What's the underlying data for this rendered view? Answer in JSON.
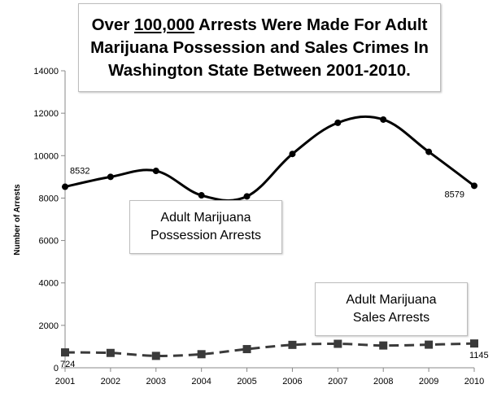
{
  "title": {
    "before": "Over ",
    "underlined": "100,000",
    "after": " Arrests Were Made For Adult Marijuana Possession and Sales Crimes In Washington State Between 2001-2010."
  },
  "chart_data": {
    "type": "line",
    "x": [
      "2001",
      "2002",
      "2003",
      "2004",
      "2005",
      "2006",
      "2007",
      "2008",
      "2009",
      "2010"
    ],
    "ylabel": "Number of Arrests",
    "xlabel": "",
    "ylim": [
      0,
      14000
    ],
    "yticks": [
      "0",
      "2000",
      "4000",
      "6000",
      "8000",
      "10000",
      "12000",
      "14000"
    ],
    "grid": false,
    "series": [
      {
        "name": "Adult Marijuana Possession Arrests",
        "style": "solid",
        "marker": "circle",
        "color": "#000000",
        "values": [
          8532,
          9000,
          9280,
          8130,
          8080,
          10080,
          11550,
          11700,
          10180,
          8579
        ]
      },
      {
        "name": "Adult Marijuana Sales Arrests",
        "style": "dashed",
        "marker": "square",
        "color": "#3a3a3a",
        "values": [
          724,
          700,
          560,
          640,
          880,
          1080,
          1130,
          1050,
          1090,
          1145
        ]
      }
    ],
    "data_labels": [
      {
        "series": 0,
        "index": 0,
        "text": "8532"
      },
      {
        "series": 0,
        "index": 9,
        "text": "8579"
      },
      {
        "series": 1,
        "index": 0,
        "text": "724"
      },
      {
        "series": 1,
        "index": 9,
        "text": "1145"
      }
    ],
    "annotations": {
      "possession": [
        "Adult Marijuana",
        "Possession Arrests"
      ],
      "sales": [
        "Adult Marijuana",
        "Sales Arrests"
      ]
    }
  }
}
